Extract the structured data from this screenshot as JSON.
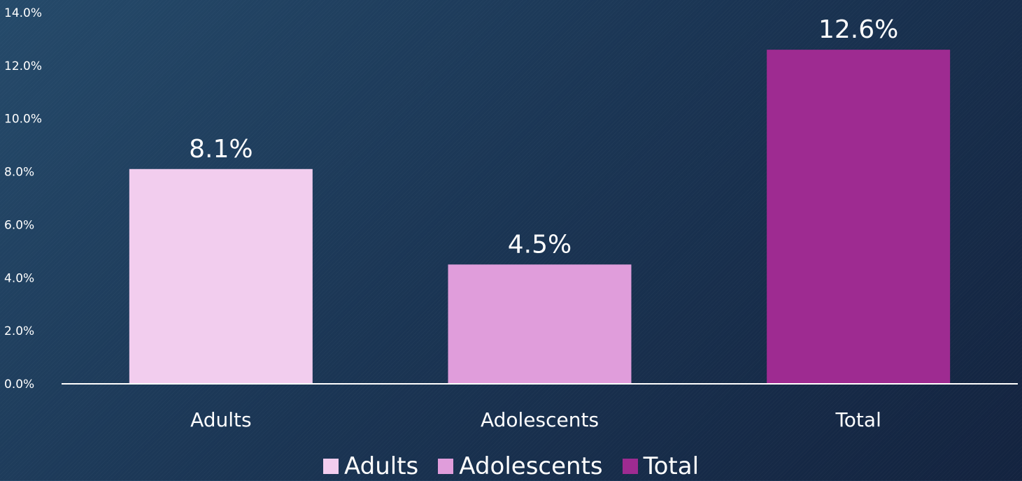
{
  "chart_data": {
    "type": "bar",
    "categories": [
      "Adults",
      "Adolescents",
      "Total"
    ],
    "series": [
      {
        "name": "Adults",
        "values": [
          8.1,
          null,
          null
        ],
        "color": "#f2cdee"
      },
      {
        "name": "Adolescents",
        "values": [
          null,
          4.5,
          null
        ],
        "color": "#e09ddb"
      },
      {
        "name": "Total",
        "values": [
          null,
          null,
          12.6
        ],
        "color": "#9e2b91"
      }
    ],
    "values": [
      8.1,
      4.5,
      12.6
    ],
    "data_labels": [
      "8.1%",
      "4.5%",
      "12.6%"
    ],
    "yticks": [
      "0.0%",
      "2.0%",
      "4.0%",
      "6.0%",
      "8.0%",
      "10.0%",
      "12.0%",
      "14.0%"
    ],
    "ylim": [
      0,
      14
    ],
    "grid": false,
    "legend": {
      "position": "bottom",
      "entries": [
        "Adults",
        "Adolescents",
        "Total"
      ]
    }
  }
}
